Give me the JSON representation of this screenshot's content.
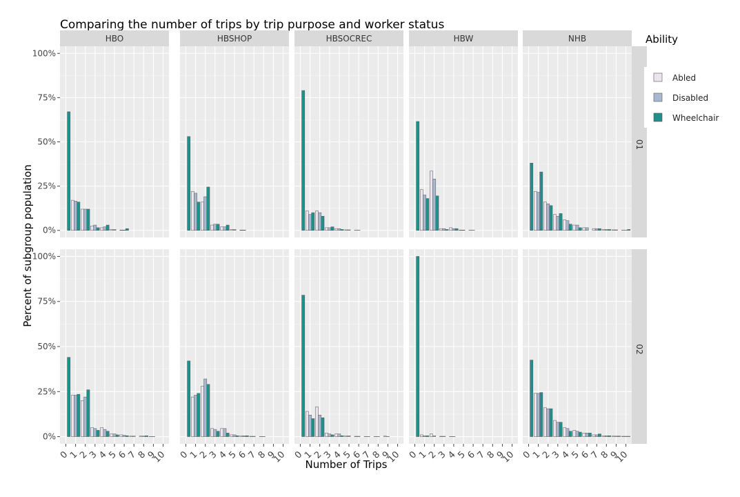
{
  "chart_data": {
    "type": "bar",
    "title": "Comparing the number of trips by trip purpose and worker status",
    "xlabel": "Number of Trips",
    "ylabel": "Percent of subgroup population",
    "ylim": [
      0,
      1
    ],
    "y_ticks": [
      "0%",
      "25%",
      "50%",
      "75%",
      "100%"
    ],
    "x": [
      0,
      1,
      2,
      3,
      4,
      5,
      6,
      7,
      8,
      9,
      10
    ],
    "columns": [
      "HBO",
      "HBSHOP",
      "HBSOCREC",
      "HBW",
      "NHB"
    ],
    "rows": [
      "01",
      "02"
    ],
    "legend": {
      "title": "Ability",
      "position": "right",
      "entries": [
        {
          "name": "Abled",
          "color": "#ebe4ee"
        },
        {
          "name": "Disabled",
          "color": "#a8b8cf"
        },
        {
          "name": "Wheelchair",
          "color": "#21908c"
        }
      ]
    },
    "grid": true,
    "panels": [
      {
        "row": "01",
        "column": "HBO",
        "series": [
          {
            "name": "Abled",
            "values": [
              0.0,
              0.17,
              0.12,
              0.025,
              0.015,
              0.005,
              0.002,
              0,
              0,
              0,
              0
            ]
          },
          {
            "name": "Disabled",
            "values": [
              0.0,
              0.165,
              0.12,
              0.03,
              0.02,
              0.005,
              0.002,
              0,
              0,
              0,
              0
            ]
          },
          {
            "name": "Wheelchair",
            "values": [
              0.67,
              0.16,
              0.12,
              0.015,
              0.03,
              0.0,
              0.01,
              0,
              0,
              0,
              0
            ]
          }
        ]
      },
      {
        "row": "01",
        "column": "HBSHOP",
        "series": [
          {
            "name": "Abled",
            "values": [
              0.0,
              0.22,
              0.16,
              0.03,
              0.02,
              0.005,
              0.002,
              0,
              0,
              0,
              0
            ]
          },
          {
            "name": "Disabled",
            "values": [
              0.0,
              0.21,
              0.19,
              0.035,
              0.02,
              0.005,
              0.002,
              0,
              0,
              0,
              0
            ]
          },
          {
            "name": "Wheelchair",
            "values": [
              0.53,
              0.16,
              0.245,
              0.035,
              0.03,
              0.0,
              0.0,
              0,
              0,
              0,
              0
            ]
          }
        ]
      },
      {
        "row": "01",
        "column": "HBSOCREC",
        "series": [
          {
            "name": "Abled",
            "values": [
              0.0,
              0.11,
              0.11,
              0.015,
              0.01,
              0.003,
              0.001,
              0,
              0,
              0,
              0
            ]
          },
          {
            "name": "Disabled",
            "values": [
              0.0,
              0.09,
              0.1,
              0.015,
              0.01,
              0.003,
              0.001,
              0,
              0,
              0,
              0
            ]
          },
          {
            "name": "Wheelchair",
            "values": [
              0.79,
              0.1,
              0.08,
              0.02,
              0.005,
              0.0,
              0.0,
              0,
              0,
              0,
              0
            ]
          }
        ]
      },
      {
        "row": "01",
        "column": "HBW",
        "series": [
          {
            "name": "Abled",
            "values": [
              0.0,
              0.23,
              0.335,
              0.01,
              0.015,
              0.002,
              0.001,
              0,
              0,
              0,
              0
            ]
          },
          {
            "name": "Disabled",
            "values": [
              0.0,
              0.2,
              0.29,
              0.01,
              0.01,
              0.002,
              0.001,
              0,
              0,
              0,
              0
            ]
          },
          {
            "name": "Wheelchair",
            "values": [
              0.615,
              0.18,
              0.195,
              0.005,
              0.01,
              0.0,
              0.0,
              0,
              0,
              0,
              0
            ]
          }
        ]
      },
      {
        "row": "01",
        "column": "NHB",
        "series": [
          {
            "name": "Abled",
            "values": [
              0.0,
              0.22,
              0.16,
              0.09,
              0.06,
              0.03,
              0.015,
              0.01,
              0.005,
              0.003,
              0.001
            ]
          },
          {
            "name": "Disabled",
            "values": [
              0.0,
              0.215,
              0.15,
              0.08,
              0.055,
              0.03,
              0.015,
              0.01,
              0.005,
              0.003,
              0.001
            ]
          },
          {
            "name": "Wheelchair",
            "values": [
              0.38,
              0.33,
              0.14,
              0.095,
              0.035,
              0.015,
              0.0,
              0.01,
              0.005,
              0.0,
              0.005
            ]
          }
        ]
      },
      {
        "row": "02",
        "column": "HBO",
        "series": [
          {
            "name": "Abled",
            "values": [
              0.0,
              0.23,
              0.2,
              0.05,
              0.05,
              0.015,
              0.01,
              0.003,
              0.003,
              0.001,
              0
            ]
          },
          {
            "name": "Disabled",
            "values": [
              0.0,
              0.23,
              0.22,
              0.045,
              0.04,
              0.015,
              0.008,
              0.003,
              0.003,
              0.001,
              0
            ]
          },
          {
            "name": "Wheelchair",
            "values": [
              0.44,
              0.235,
              0.26,
              0.035,
              0.03,
              0.01,
              0.005,
              0.0,
              0.005,
              0.0,
              0
            ]
          }
        ]
      },
      {
        "row": "02",
        "column": "HBSHOP",
        "series": [
          {
            "name": "Abled",
            "values": [
              0.0,
              0.22,
              0.28,
              0.045,
              0.045,
              0.01,
              0.005,
              0.002,
              0.001,
              0,
              0
            ]
          },
          {
            "name": "Disabled",
            "values": [
              0.0,
              0.23,
              0.32,
              0.04,
              0.045,
              0.01,
              0.005,
              0.002,
              0.001,
              0,
              0
            ]
          },
          {
            "name": "Wheelchair",
            "values": [
              0.42,
              0.24,
              0.29,
              0.03,
              0.02,
              0.005,
              0.005,
              0.0,
              0.0,
              0,
              0
            ]
          }
        ]
      },
      {
        "row": "02",
        "column": "HBSOCREC",
        "series": [
          {
            "name": "Abled",
            "values": [
              0.0,
              0.14,
              0.165,
              0.02,
              0.015,
              0.005,
              0.002,
              0.001,
              0.001,
              0.003,
              0
            ]
          },
          {
            "name": "Disabled",
            "values": [
              0.0,
              0.12,
              0.12,
              0.015,
              0.015,
              0.005,
              0.002,
              0.001,
              0.001,
              0.001,
              0
            ]
          },
          {
            "name": "Wheelchair",
            "values": [
              0.785,
              0.1,
              0.105,
              0.01,
              0.005,
              0.0,
              0.0,
              0.0,
              0.0,
              0.0,
              0
            ]
          }
        ]
      },
      {
        "row": "02",
        "column": "HBW",
        "series": [
          {
            "name": "Abled",
            "values": [
              0.0,
              0.01,
              0.015,
              0.002,
              0.001,
              0,
              0,
              0,
              0,
              0,
              0
            ]
          },
          {
            "name": "Disabled",
            "values": [
              0.0,
              0.005,
              0.005,
              0.002,
              0.001,
              0,
              0,
              0,
              0,
              0,
              0
            ]
          },
          {
            "name": "Wheelchair",
            "values": [
              1.0,
              0.005,
              0.0,
              0.0,
              0.0,
              0,
              0,
              0,
              0,
              0,
              0
            ]
          }
        ]
      },
      {
        "row": "02",
        "column": "NHB",
        "series": [
          {
            "name": "Abled",
            "values": [
              0.0,
              0.24,
              0.16,
              0.09,
              0.05,
              0.035,
              0.02,
              0.01,
              0.005,
              0.003,
              0.002
            ]
          },
          {
            "name": "Disabled",
            "values": [
              0.0,
              0.24,
              0.155,
              0.08,
              0.045,
              0.03,
              0.02,
              0.01,
              0.005,
              0.003,
              0.002
            ]
          },
          {
            "name": "Wheelchair",
            "values": [
              0.425,
              0.245,
              0.155,
              0.08,
              0.03,
              0.025,
              0.02,
              0.015,
              0.005,
              0.003,
              0.002
            ]
          }
        ]
      }
    ]
  }
}
